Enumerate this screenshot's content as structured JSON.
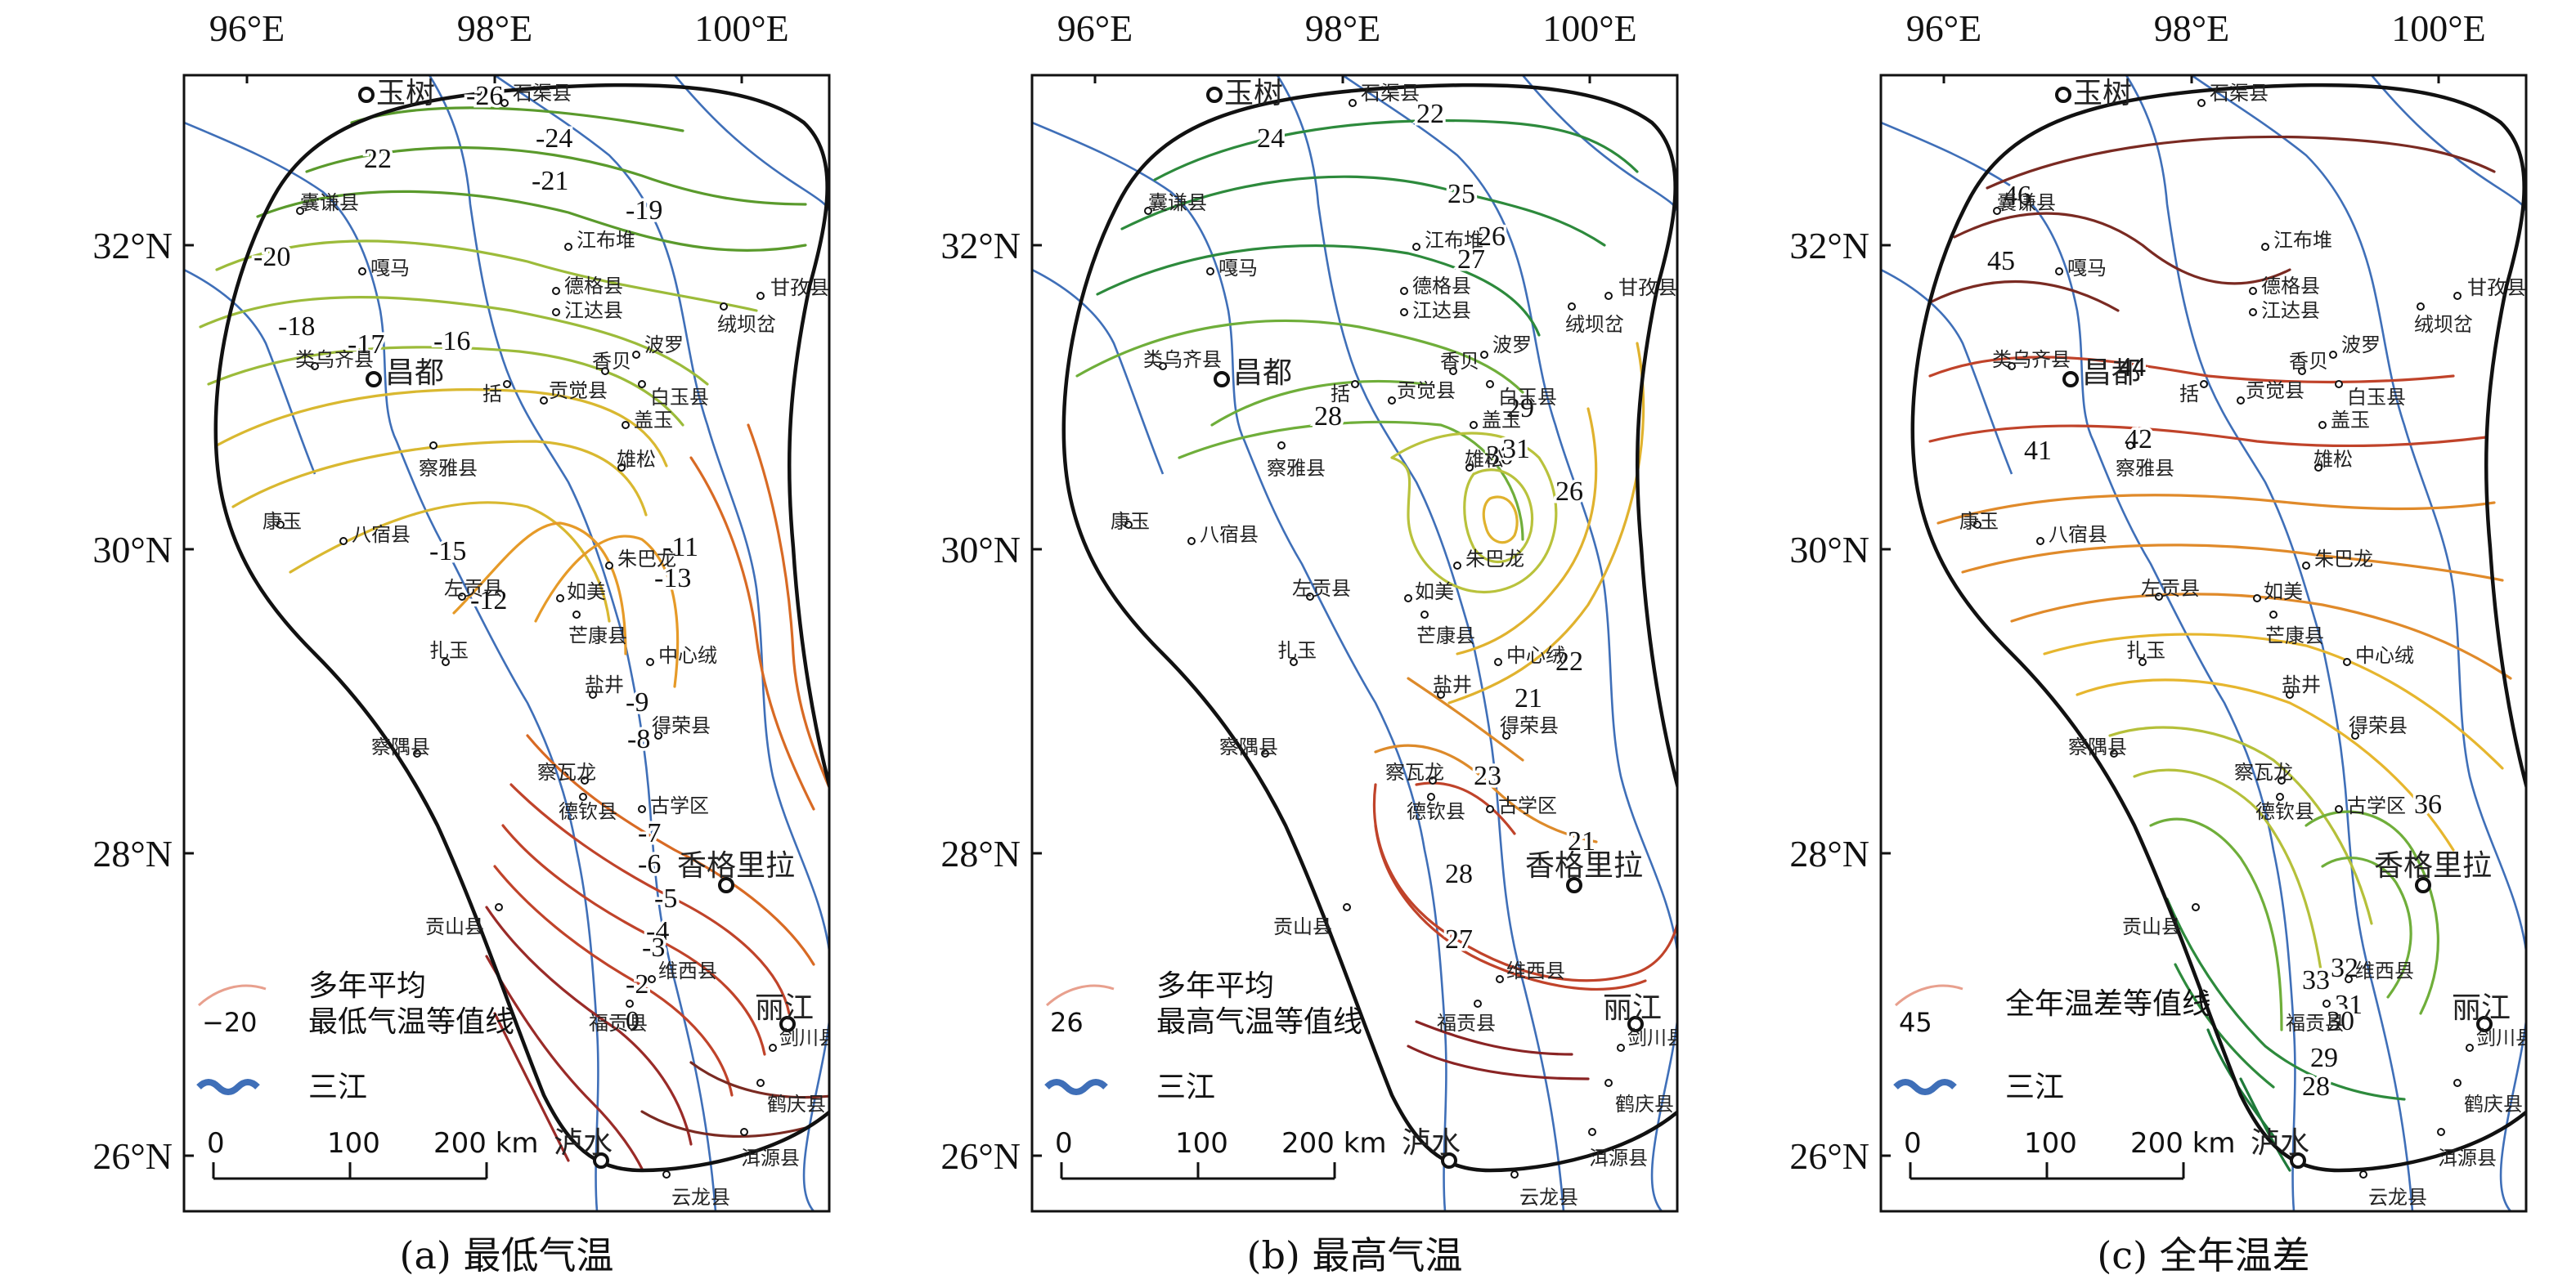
{
  "lon_labels": [
    "96°E",
    "98°E",
    "100°E"
  ],
  "lat_labels": [
    "32°N",
    "30°N",
    "28°N",
    "26°N"
  ],
  "scale_bar": {
    "ticks": [
      "0",
      "100",
      "200 km"
    ]
  },
  "panels": [
    {
      "id": "a",
      "caption": "(a) 最低气温",
      "legend_title": "多年平均",
      "legend_subtitle": "最低气温等值线",
      "legend_value": "−20",
      "legend_river": "三江",
      "contour_labels": [
        "-26",
        "-24",
        "22",
        "-21",
        "-19",
        "-20",
        "-18",
        "-17",
        "-16",
        "-15",
        "-12",
        "-13",
        "-11",
        "-9",
        "-8",
        "-7",
        "-6",
        "-5",
        "-4",
        "-3",
        "-2",
        "0"
      ],
      "palette": [
        "#5a9a2c",
        "#9cbb3a",
        "#d9b830",
        "#e69a28",
        "#d86a24",
        "#c0432a",
        "#9a2b28",
        "#7a2a22"
      ]
    },
    {
      "id": "b",
      "caption": "(b) 最高气温",
      "legend_title": "多年平均",
      "legend_subtitle": "最高气温等值线",
      "legend_value": "26",
      "legend_river": "三江",
      "contour_labels": [
        "22",
        "24",
        "25",
        "26",
        "27",
        "28",
        "29",
        "30",
        "31",
        "26",
        "22",
        "21",
        "23",
        "21",
        "28",
        "27"
      ],
      "palette": [
        "#2d8a3c",
        "#6fae3a",
        "#b9c23c",
        "#e0b22e",
        "#dd8a2a",
        "#c0432a",
        "#8a2424"
      ]
    },
    {
      "id": "c",
      "caption": "(c) 全年温差",
      "legend_title": "全年温差等值线",
      "legend_subtitle": "",
      "legend_value": "45",
      "legend_river": "三江",
      "contour_labels": [
        "46",
        "45",
        "44",
        "42",
        "41",
        "36",
        "33",
        "32",
        "31",
        "30",
        "29",
        "28"
      ],
      "palette": [
        "#7a2a22",
        "#c0432a",
        "#e08a2a",
        "#e6b62e",
        "#b5c03a",
        "#6fae3a",
        "#2d8a3c",
        "#1f7a3a"
      ]
    }
  ],
  "cities": [
    {
      "name": "玉树",
      "major": true
    },
    {
      "name": "石渠县",
      "major": false
    },
    {
      "name": "囊谦县",
      "major": false
    },
    {
      "name": "嘎马",
      "major": false
    },
    {
      "name": "江布堆",
      "major": false
    },
    {
      "name": "德格县",
      "major": false
    },
    {
      "name": "甘孜县",
      "major": false
    },
    {
      "name": "绒坝岔",
      "major": false
    },
    {
      "name": "类乌齐县",
      "major": false
    },
    {
      "name": "昌都",
      "major": true
    },
    {
      "name": "江达县",
      "major": false
    },
    {
      "name": "香贝",
      "major": false
    },
    {
      "name": "波罗",
      "major": false
    },
    {
      "name": "白玉县",
      "major": false
    },
    {
      "name": "括",
      "major": false
    },
    {
      "name": "贡觉县",
      "major": false
    },
    {
      "name": "盖玉",
      "major": false
    },
    {
      "name": "察雅县",
      "major": false
    },
    {
      "name": "雄松",
      "major": false
    },
    {
      "name": "康玉",
      "major": false
    },
    {
      "name": "八宿县",
      "major": false
    },
    {
      "name": "朱巴龙",
      "major": false
    },
    {
      "name": "左贡县",
      "major": false
    },
    {
      "name": "如美",
      "major": false
    },
    {
      "name": "芒康县",
      "major": false
    },
    {
      "name": "扎玉",
      "major": false
    },
    {
      "name": "中心绒",
      "major": false
    },
    {
      "name": "盐井",
      "major": false
    },
    {
      "name": "察隅县",
      "major": false
    },
    {
      "name": "得荣县",
      "major": false
    },
    {
      "name": "察瓦龙",
      "major": false
    },
    {
      "name": "德钦县",
      "major": false
    },
    {
      "name": "古学区",
      "major": false
    },
    {
      "name": "香格里拉",
      "major": true
    },
    {
      "name": "贡山县",
      "major": false
    },
    {
      "name": "维西县",
      "major": false
    },
    {
      "name": "福贡县",
      "major": false
    },
    {
      "name": "丽江",
      "major": true
    },
    {
      "name": "剑川县",
      "major": false
    },
    {
      "name": "鹤庆县",
      "major": false
    },
    {
      "name": "泸水",
      "major": true
    },
    {
      "name": "洱源县",
      "major": false
    },
    {
      "name": "云龙县",
      "major": false
    }
  ],
  "colors": {
    "river": "#3f6fb8",
    "boundary": "#111111",
    "frame": "#111111",
    "legend_line": "#e8a08e"
  }
}
